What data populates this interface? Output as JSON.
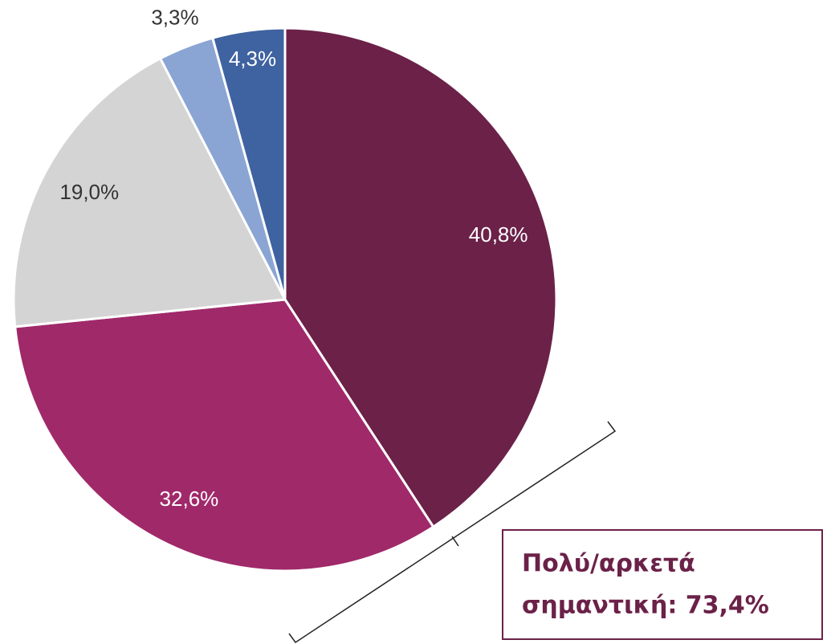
{
  "chart_data": {
    "type": "pie",
    "values": [
      40.8,
      32.6,
      19.0,
      3.3,
      4.3
    ],
    "value_labels": [
      "40,8%",
      "32,6%",
      "19,0%",
      "3,3%",
      "4,3%"
    ],
    "colors": [
      "#6b2148",
      "#a0296a",
      "#d4d4d4",
      "#8aa5d3",
      "#3f62a0"
    ],
    "annotation": [
      "Πολύ/αρκετά",
      "σημαντική: 73,4%"
    ]
  }
}
